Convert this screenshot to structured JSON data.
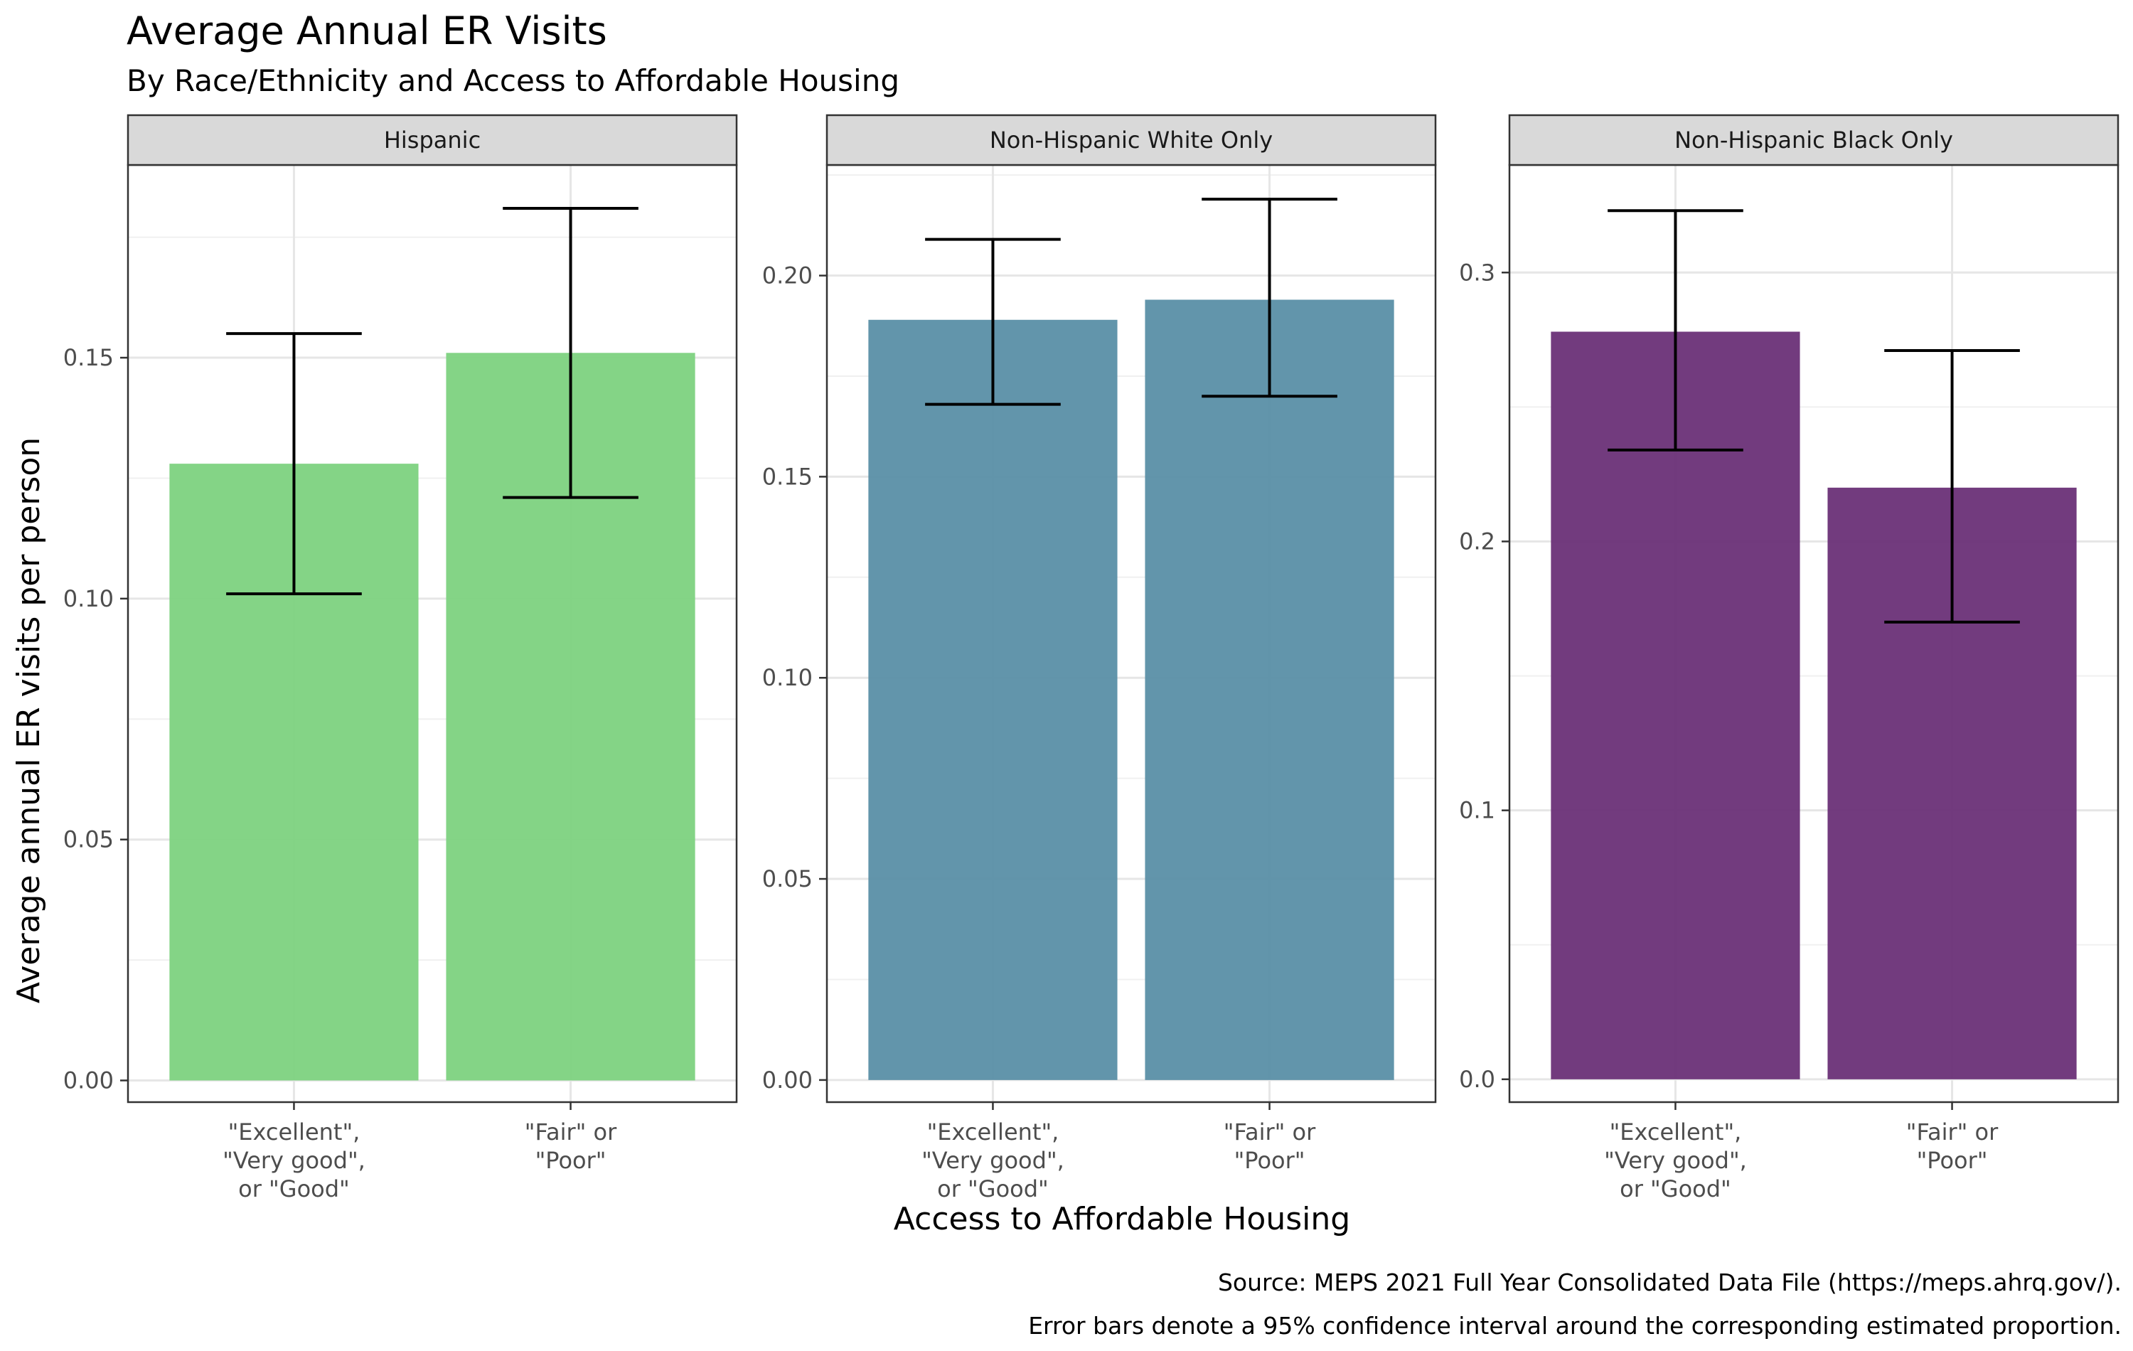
{
  "chart_data": {
    "type": "bar",
    "title": "Average Annual ER Visits",
    "subtitle": "By Race/Ethnicity and Access to Affordable Housing",
    "xlabel": "Access to Affordable Housing",
    "ylabel": "Average annual ER visits per person",
    "categories": [
      [
        "\"Excellent\",",
        "\"Very good\",",
        "or \"Good\""
      ],
      [
        "\"Fair\" or",
        "\"Poor\""
      ]
    ],
    "captions": [
      "Source: MEPS 2021 Full Year Consolidated Data File (https://meps.ahrq.gov/).",
      "Error bars denote a 95% confidence interval around the corresponding estimated proportion."
    ],
    "grid": true,
    "legend": "none",
    "panels": [
      {
        "name": "Hispanic",
        "color": "#7dd27f",
        "ylim": [
          -0.0045,
          0.19
        ],
        "yticks": [
          0.0,
          0.05,
          0.1,
          0.15
        ],
        "tick_labels": [
          "0.00",
          "0.05",
          "0.10",
          "0.15"
        ],
        "values": [
          0.128,
          0.151
        ],
        "ci_low": [
          0.101,
          0.121
        ],
        "ci_high": [
          0.155,
          0.181
        ]
      },
      {
        "name": "Non-Hispanic White Only",
        "color": "#5a8fa7",
        "ylim": [
          -0.0055,
          0.2275
        ],
        "yticks": [
          0.0,
          0.05,
          0.1,
          0.15,
          0.2
        ],
        "tick_labels": [
          "0.00",
          "0.05",
          "0.10",
          "0.15",
          "0.20"
        ],
        "values": [
          0.189,
          0.194
        ],
        "ci_low": [
          0.168,
          0.17
        ],
        "ci_high": [
          0.209,
          0.219
        ]
      },
      {
        "name": "Non-Hispanic Black Only",
        "color": "#6a3077",
        "ylim": [
          -0.0085,
          0.34
        ],
        "yticks": [
          0.0,
          0.1,
          0.2,
          0.3
        ],
        "tick_labels": [
          "0.0",
          "0.1",
          "0.2",
          "0.3"
        ],
        "values": [
          0.278,
          0.22
        ],
        "ci_low": [
          0.234,
          0.17
        ],
        "ci_high": [
          0.323,
          0.271
        ]
      }
    ]
  }
}
